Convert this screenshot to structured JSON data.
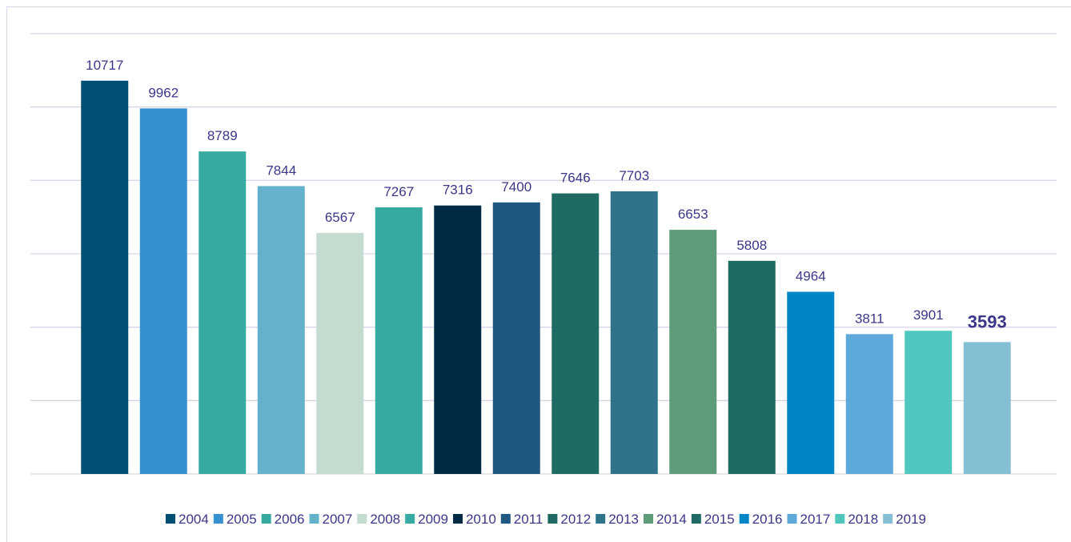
{
  "chart_data": {
    "type": "bar",
    "categories": [
      "2004",
      "2005",
      "2006",
      "2007",
      "2008",
      "2009",
      "2010",
      "2011",
      "2012",
      "2013",
      "2014",
      "2015",
      "2016",
      "2017",
      "2018",
      "2019"
    ],
    "values": [
      10717,
      9962,
      8789,
      7844,
      6567,
      7267,
      7316,
      7400,
      7646,
      7703,
      6653,
      5808,
      4964,
      3811,
      3901,
      3593
    ],
    "colors": [
      "#005073",
      "#3591d0",
      "#36a9a1",
      "#65b1cc",
      "#c4dbd0",
      "#36a9a1",
      "#002b45",
      "#1f5780",
      "#1e6b63",
      "#2e7389",
      "#5e9b78",
      "#1e6b63",
      "#0085c7",
      "#5ea9db",
      "#4fc7bf",
      "#84bfd4"
    ],
    "ylim": [
      0,
      12000
    ],
    "yticks": [
      0,
      2000,
      4000,
      6000,
      8000,
      10000,
      12000
    ],
    "grid": true,
    "legend": "bottom"
  }
}
